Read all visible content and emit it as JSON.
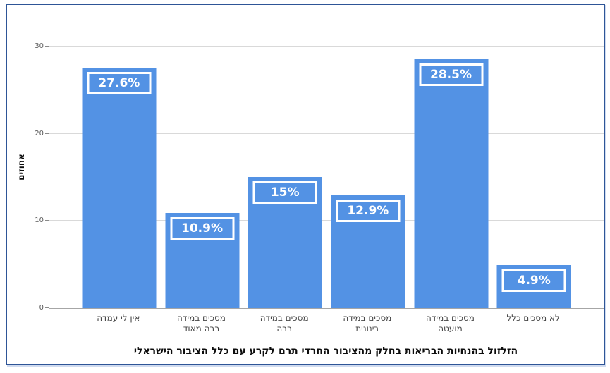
{
  "frame": {
    "border_color": "#2e5597",
    "background": "#ffffff"
  },
  "chart_data": {
    "type": "bar",
    "title": "",
    "xlabel": "הזלזול בהנחיות הבריאות בחלק מהציבור החרדי תרם לקרע עם כלל הציבור הישראלי",
    "ylabel": "אחוזים",
    "categories": [
      "לא מסכים כלל",
      "מסכים במידה מועטה",
      "מסכים במידה בינונית",
      "מסכים במידה רבה",
      "מסכים במידה רבה מאוד",
      "אין לי עמדה"
    ],
    "category_lines": [
      [
        "לא מסכים כלל"
      ],
      [
        "מסכים במידה",
        "מועטה"
      ],
      [
        "מסכים במידה",
        "בינונית"
      ],
      [
        "מסכים במידה",
        "רבה"
      ],
      [
        "מסכים במידה",
        "רבה מאוד"
      ],
      [
        "אין לי עמדה"
      ]
    ],
    "values": [
      27.6,
      10.9,
      15,
      12.9,
      28.5,
      4.9
    ],
    "value_labels": [
      "27.6%",
      "10.9%",
      "15%",
      "12.9%",
      "28.5%",
      "4.9%"
    ],
    "yticks": [
      0,
      10,
      20,
      30
    ],
    "ylim": [
      0,
      32.34
    ],
    "grid": true,
    "legend_position": "none",
    "bar_color": "#5392e4",
    "value_label_text_color": "#ffffff",
    "value_label_border_color": "#ffffff",
    "gridline_color": "#d9d9d9"
  }
}
